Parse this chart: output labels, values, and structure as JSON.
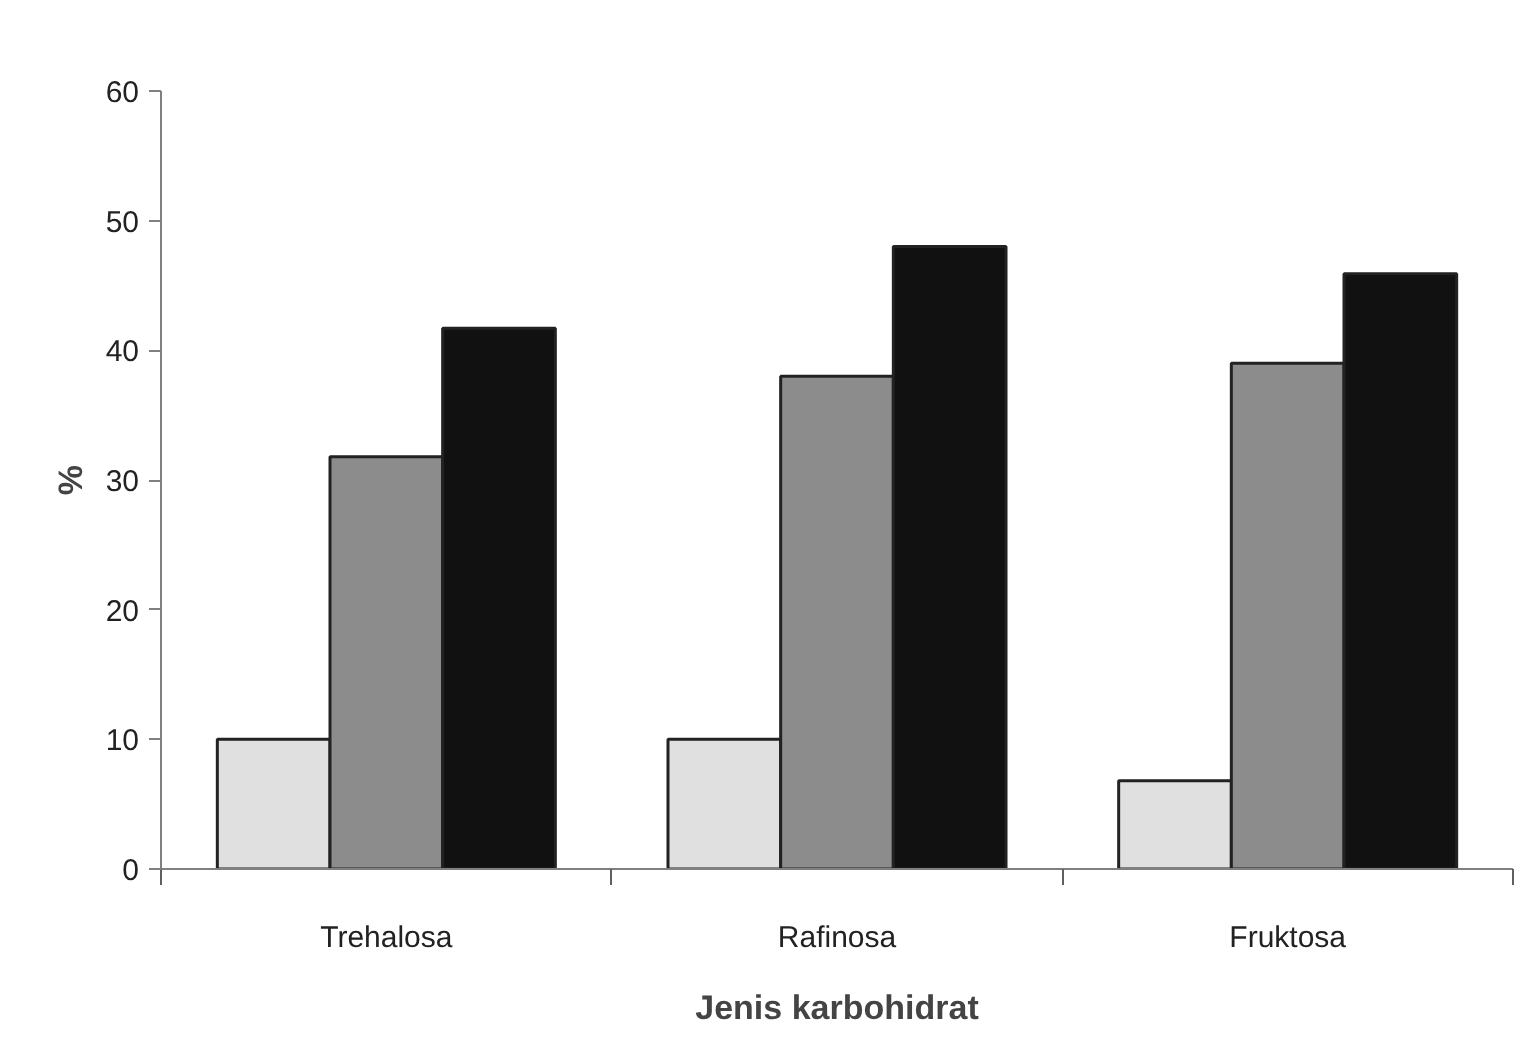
{
  "chart_data": {
    "type": "bar",
    "xlabel": "Jenis karbohidrat",
    "ylabel": "%",
    "categories": [
      "Trehalosa",
      "Rafinosa",
      "Fruktosa"
    ],
    "series": [
      {
        "color": "#e0e0e0",
        "values": [
          10,
          10,
          6.8
        ]
      },
      {
        "color": "#8c8c8c",
        "values": [
          31.8,
          38,
          39
        ]
      },
      {
        "color": "#111111",
        "values": [
          41.7,
          48,
          45.9
        ]
      }
    ],
    "ylim": [
      0,
      60
    ],
    "yticks": [
      0,
      10,
      20,
      30,
      40,
      50,
      60
    ]
  }
}
